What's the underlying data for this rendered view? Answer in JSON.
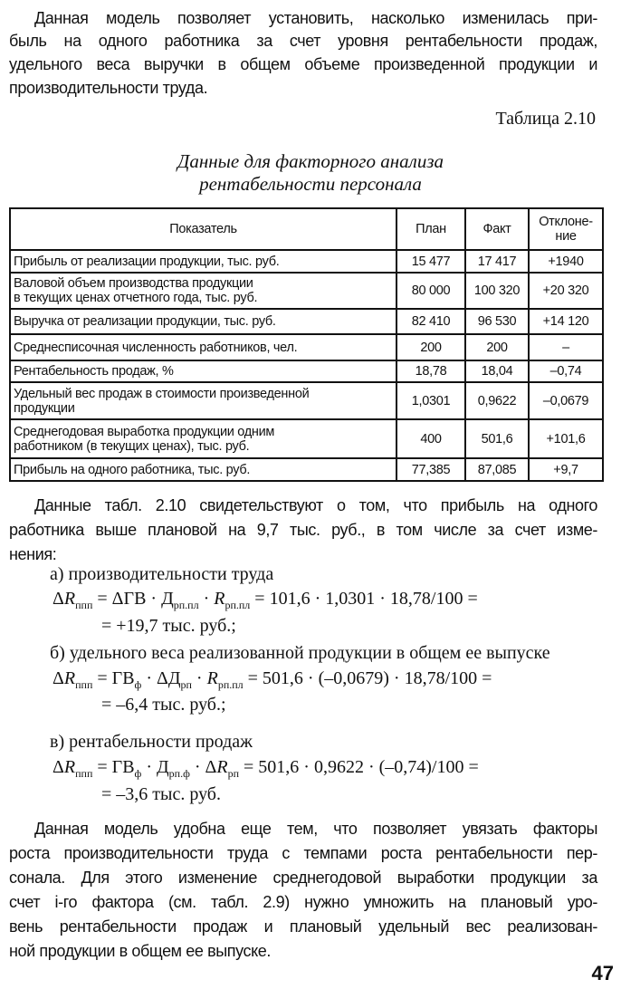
{
  "intro_lines": [
    "Данная модель позволяет установить, насколько изменилась при-",
    "быль на одного работника за счет уровня рентабельности продаж,",
    "удельного веса выручки в общем объеме произведенной продукции и",
    "производительности труда."
  ],
  "table_caption": "Таблица 2.10",
  "table_title": [
    "Данные для факторного анализа",
    "рентабельности персонала"
  ],
  "table": {
    "headers": [
      "Показатель",
      "План",
      "Факт",
      "Отклоне-\nние"
    ],
    "rows": [
      [
        "Прибыль от реализации продукции, тыс. руб.",
        "15 477",
        "17 417",
        "+1940"
      ],
      [
        "Валовой объем производства продукции\nв текущих ценах отчетного года, тыс. руб.",
        "80 000",
        "100 320",
        "+20 320"
      ],
      [
        "Выручка от реализации продукции, тыс. руб.",
        "82 410",
        "96 530",
        "+14 120"
      ],
      [
        "Среднесписочная численность работников, чел.",
        "200",
        "200",
        "–"
      ],
      [
        "Рентабельность продаж, %",
        "18,78",
        "18,04",
        "–0,74"
      ],
      [
        "Удельный вес продаж в стоимости произведенной\nпродукции",
        "1,0301",
        "0,9622",
        "–0,0679"
      ],
      [
        "Среднегодовая выработка продукции одним\nработником (в текущих ценах), тыс. руб.",
        "400",
        "501,6",
        "+101,6"
      ],
      [
        "Прибыль на одного работника, тыс. руб.",
        "77,385",
        "87,085",
        "+9,7"
      ]
    ]
  },
  "para2_lines": [
    "Данные табл. 2.10 свидетельствуют о том, что прибыль на одного",
    "работника выше плановой на 9,7 тыс. руб., в том числе за счет изме-",
    "нения:"
  ],
  "items": [
    {
      "label": "а) производительности труда",
      "formula": [
        {
          "t": "Δ"
        },
        {
          "t": "R",
          "i": 1
        },
        {
          "s": "ппп"
        },
        {
          "t": " = ΔГВ · Д"
        },
        {
          "s": "рп.пл"
        },
        {
          "t": " · "
        },
        {
          "t": "R",
          "i": 1
        },
        {
          "s": "рп.пл"
        },
        {
          "t": " = 101,6 · 1,0301 · 18,78/100 ="
        }
      ],
      "result": "= +19,7 тыс. руб.;"
    },
    {
      "label": "б) удельного веса реализованной продукции в общем ее выпуске",
      "formula": [
        {
          "t": "Δ"
        },
        {
          "t": "R",
          "i": 1
        },
        {
          "s": "ппп"
        },
        {
          "t": " = ГВ"
        },
        {
          "s": "ф"
        },
        {
          "t": " · ΔД"
        },
        {
          "s": "рп"
        },
        {
          "t": " · "
        },
        {
          "t": "R",
          "i": 1
        },
        {
          "s": "рп.пл"
        },
        {
          "t": " = 501,6 · (–0,0679) · 18,78/100 ="
        }
      ],
      "result": "= –6,4 тыс. руб.;"
    },
    {
      "label": "в) рентабельности продаж",
      "formula": [
        {
          "t": "Δ"
        },
        {
          "t": "R",
          "i": 1
        },
        {
          "s": "ппп"
        },
        {
          "t": " = ГВ"
        },
        {
          "s": "ф"
        },
        {
          "t": " · Д"
        },
        {
          "s": "рп.ф"
        },
        {
          "t": " · Δ"
        },
        {
          "t": "R",
          "i": 1
        },
        {
          "s": "рп"
        },
        {
          "t": " = 501,6 · 0,9622 · (–0,74)/100 ="
        }
      ],
      "result": "= –3,6 тыс. руб."
    }
  ],
  "para3_lines": [
    "Данная модель удобна еще тем, что позволяет увязать факторы",
    "роста производительности труда с темпами роста рентабельности пер-",
    "сонала. Для этого изменение среднегодовой выработки продукции за",
    "счет i-го фактора (см. табл. 2.9) нужно умножить на плановый уро-",
    "вень рентабельности продаж и плановый удельный вес реализован-",
    "ной продукции в общем ее выпуске."
  ],
  "page_number": "47"
}
